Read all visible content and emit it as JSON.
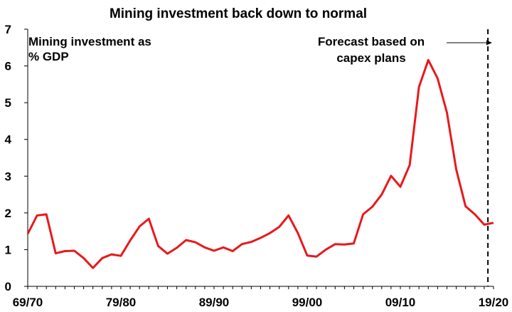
{
  "chart_data": {
    "type": "line",
    "title": "Mining investment back down to normal",
    "xlabel": "",
    "ylabel": "",
    "ylim": [
      0,
      7
    ],
    "yticks": [
      "0",
      "1",
      "2",
      "3",
      "4",
      "5",
      "6",
      "7"
    ],
    "xtick_labels": [
      "69/70",
      "79/80",
      "89/90",
      "99/00",
      "09/10",
      "19/20"
    ],
    "grid": false,
    "series_label": [
      "Mining investment as",
      "% GDP"
    ],
    "forecast_label": [
      "Forecast based on",
      "capex plans"
    ],
    "line_color": "#e8191c",
    "forecast_line_color": "#000000",
    "series": [
      {
        "x": [
          "69/70",
          "70/71",
          "71/72",
          "72/73",
          "73/74",
          "74/75",
          "75/76",
          "76/77",
          "77/78",
          "78/79",
          "79/80",
          "80/81",
          "81/82",
          "82/83",
          "83/84",
          "84/85",
          "85/86",
          "86/87",
          "87/88",
          "88/89",
          "89/90",
          "90/91",
          "91/92",
          "92/93",
          "93/94",
          "94/95",
          "95/96",
          "96/97",
          "97/98",
          "98/99",
          "99/00",
          "00/01",
          "01/02",
          "02/03",
          "03/04",
          "04/05",
          "05/06",
          "06/07",
          "07/08",
          "08/09",
          "09/10",
          "10/11",
          "11/12",
          "12/13",
          "13/14",
          "14/15",
          "15/16",
          "16/17",
          "17/18",
          "18/19",
          "19/20"
        ],
        "values": [
          1.43,
          1.93,
          1.96,
          0.9,
          0.96,
          0.97,
          0.77,
          0.5,
          0.77,
          0.87,
          0.83,
          1.25,
          1.63,
          1.84,
          1.1,
          0.89,
          1.05,
          1.26,
          1.2,
          1.06,
          0.97,
          1.06,
          0.96,
          1.15,
          1.21,
          1.32,
          1.45,
          1.62,
          1.93,
          1.45,
          0.84,
          0.81,
          1.0,
          1.15,
          1.14,
          1.17,
          1.96,
          2.17,
          2.5,
          3.01,
          2.71,
          3.3,
          5.43,
          6.16,
          5.66,
          4.73,
          3.18,
          2.18,
          1.96,
          1.68,
          1.73
        ]
      }
    ],
    "forecast_start": "18/19"
  }
}
